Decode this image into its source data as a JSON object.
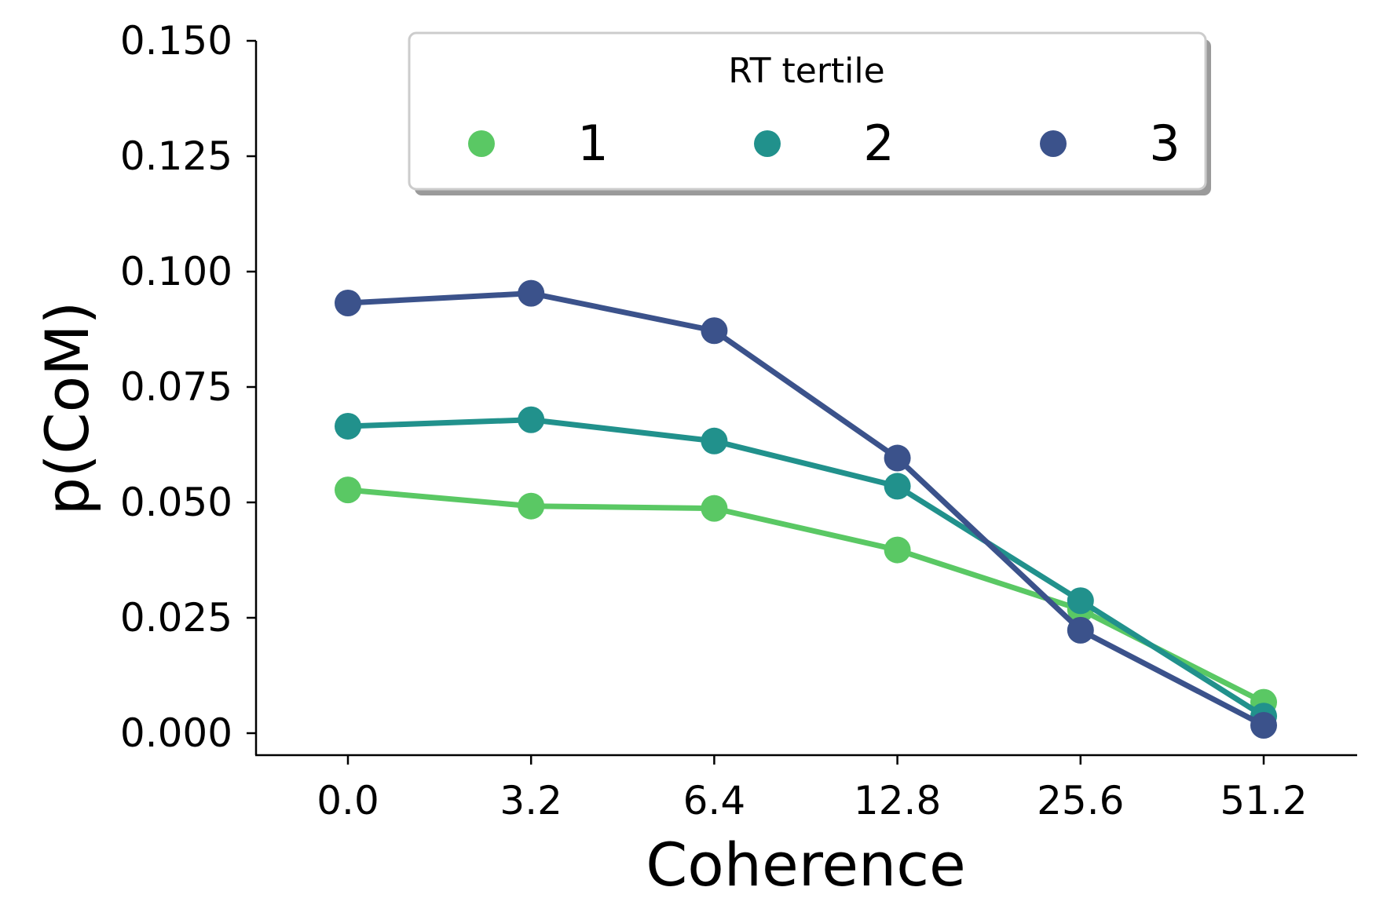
{
  "chart_data": {
    "type": "line",
    "categories": [
      "0.0",
      "3.2",
      "6.4",
      "12.8",
      "25.6",
      "51.2"
    ],
    "series": [
      {
        "name": "1",
        "color": "#5ac864",
        "values": [
          0.0527,
          0.0492,
          0.0487,
          0.0397,
          0.0268,
          0.0067
        ]
      },
      {
        "name": "2",
        "color": "#21918c",
        "values": [
          0.0665,
          0.0679,
          0.0633,
          0.0535,
          0.0287,
          0.0037
        ]
      },
      {
        "name": "3",
        "color": "#3b528b",
        "values": [
          0.0932,
          0.0953,
          0.0872,
          0.0596,
          0.0223,
          0.0017
        ]
      }
    ],
    "xlabel": "Coherence",
    "ylabel": "p(CoM)",
    "ylim": [
      -0.005,
      0.15
    ],
    "yticks": [
      "0.000",
      "0.025",
      "0.050",
      "0.075",
      "0.100",
      "0.125",
      "0.150"
    ],
    "legend": {
      "title": "RT tertile",
      "placement": "top-center"
    },
    "grid": false
  }
}
